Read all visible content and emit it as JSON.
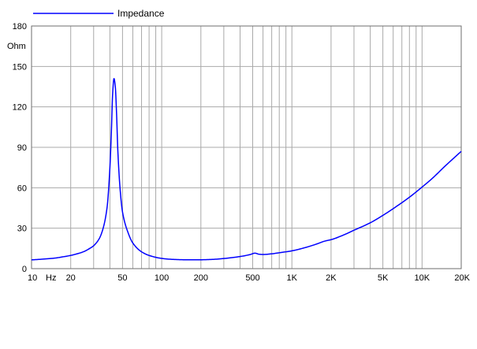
{
  "chart_data": {
    "type": "line",
    "title": "",
    "xlabel": "Hz",
    "ylabel": "Ohm",
    "x_scale": "log",
    "xlim": [
      10,
      20000
    ],
    "ylim": [
      0,
      180
    ],
    "grid": true,
    "legend_position": "top-left",
    "x_ticks": [
      {
        "value": 10,
        "label": "10"
      },
      {
        "value": 20,
        "label": "20"
      },
      {
        "value": 50,
        "label": "50"
      },
      {
        "value": 100,
        "label": "100"
      },
      {
        "value": 200,
        "label": "200"
      },
      {
        "value": 500,
        "label": "500"
      },
      {
        "value": 1000,
        "label": "1K"
      },
      {
        "value": 2000,
        "label": "2K"
      },
      {
        "value": 5000,
        "label": "5K"
      },
      {
        "value": 10000,
        "label": "10K"
      },
      {
        "value": 20000,
        "label": "20K"
      }
    ],
    "y_ticks": [
      0,
      30,
      60,
      90,
      120,
      150,
      180
    ],
    "series": [
      {
        "name": "Impedance",
        "color": "#0000ff",
        "x": [
          10,
          12,
          15,
          18,
          20,
          22,
          25,
          28,
          30,
          33,
          35,
          38,
          40,
          41,
          42,
          43,
          44,
          45,
          46,
          48,
          50,
          55,
          60,
          70,
          80,
          100,
          120,
          150,
          200,
          250,
          300,
          400,
          480,
          520,
          560,
          600,
          700,
          800,
          1000,
          1200,
          1500,
          1800,
          2000,
          2500,
          3000,
          4000,
          5000,
          6000,
          8000,
          10000,
          12000,
          15000,
          18000,
          20000
        ],
        "y": [
          6.5,
          7,
          7.8,
          9,
          9.8,
          10.8,
          12.5,
          15,
          17,
          22,
          28,
          45,
          75,
          100,
          130,
          141,
          135,
          115,
          88,
          58,
          42,
          27,
          19,
          12.5,
          9.8,
          7.6,
          6.9,
          6.6,
          6.6,
          6.9,
          7.5,
          9,
          10.5,
          11.5,
          10.7,
          10.5,
          11,
          11.8,
          13.2,
          15,
          17.8,
          20.5,
          21.5,
          25,
          28.5,
          34,
          39.5,
          44.5,
          53,
          60.5,
          67,
          76,
          83,
          87
        ]
      }
    ]
  }
}
